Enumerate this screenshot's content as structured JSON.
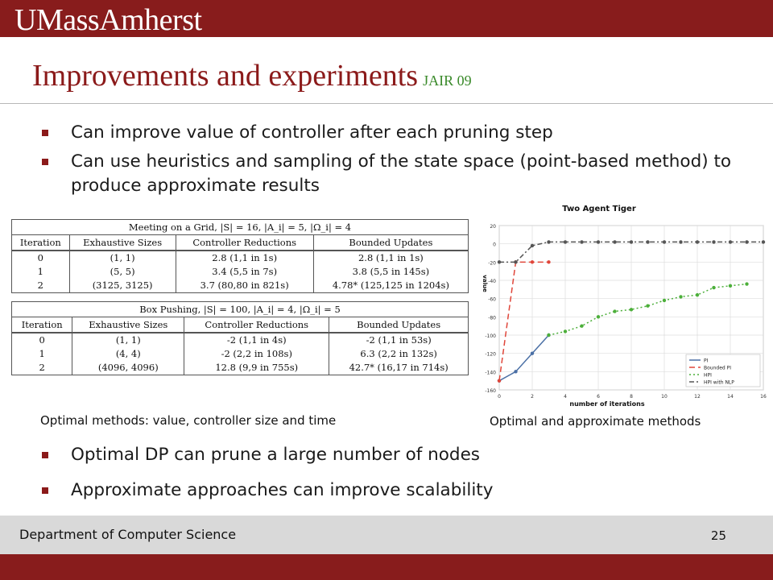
{
  "header": {
    "logo_text": "UMassAmherst"
  },
  "slide": {
    "title": "Improvements and experiments",
    "title_tag": "JAIR 09",
    "bullets": [
      "Can improve value of controller after each pruning step",
      "Can use heuristics and sampling of the state space (point-based method) to produce approximate results"
    ],
    "bullets_bottom": [
      "Optimal DP can prune a large number of nodes",
      "Approximate approaches can improve scalability"
    ],
    "caption_left": "Optimal methods: value, controller size and time",
    "caption_right": "Optimal and approximate methods"
  },
  "table1": {
    "caption": "Meeting on a Grid, |S| = 16, |A_i| = 5, |Ω_i| = 4",
    "headers": [
      "Iteration",
      "Exhaustive Sizes",
      "Controller Reductions",
      "Bounded Updates"
    ],
    "rows": [
      [
        "0",
        "(1, 1)",
        "2.8 (1,1 in 1s)",
        "2.8 (1,1 in 1s)"
      ],
      [
        "1",
        "(5, 5)",
        "3.4 (5,5 in 7s)",
        "3.8 (5,5 in 145s)"
      ],
      [
        "2",
        "(3125, 3125)",
        "3.7 (80,80 in 821s)",
        "4.78* (125,125 in 1204s)"
      ]
    ]
  },
  "table2": {
    "caption": "Box Pushing, |S| = 100, |A_i| = 4, |Ω_i| = 5",
    "headers": [
      "Iteration",
      "Exhaustive Sizes",
      "Controller Reductions",
      "Bounded Updates"
    ],
    "rows": [
      [
        "0",
        "(1, 1)",
        "-2 (1,1 in 4s)",
        "-2 (1,1 in 53s)"
      ],
      [
        "1",
        "(4, 4)",
        "-2 (2,2 in 108s)",
        "6.3 (2,2 in 132s)"
      ],
      [
        "2",
        "(4096, 4096)",
        "12.8 (9,9 in 755s)",
        "42.7* (16,17 in 714s)"
      ]
    ]
  },
  "chart_data": {
    "type": "line",
    "title": "Two Agent Tiger",
    "xlabel": "number of iterations",
    "ylabel": "value",
    "xlim": [
      0,
      16
    ],
    "ylim": [
      -160,
      20
    ],
    "xticks": [
      0,
      2,
      4,
      6,
      8,
      10,
      12,
      14,
      16
    ],
    "yticks": [
      20,
      0,
      -20,
      -40,
      -60,
      -80,
      -100,
      -120,
      -140,
      -160
    ],
    "grid": true,
    "legend": "bottom-right",
    "series": [
      {
        "name": "PI",
        "color": "#4a6fa5",
        "style": "solid",
        "x": [
          0,
          1,
          2,
          3
        ],
        "y": [
          -150,
          -140,
          -120,
          -100
        ]
      },
      {
        "name": "Bounded PI",
        "color": "#e0463a",
        "style": "dashed",
        "x": [
          0,
          1,
          2,
          3
        ],
        "y": [
          -150,
          -20,
          -20,
          -20
        ]
      },
      {
        "name": "HPI",
        "color": "#4caf3a",
        "style": "dotted",
        "x": [
          3,
          4,
          5,
          6,
          7,
          8,
          9,
          10,
          11,
          12,
          13,
          14,
          15
        ],
        "y": [
          -100,
          -96,
          -90,
          -80,
          -74,
          -72,
          -68,
          -62,
          -58,
          -56,
          -48,
          -46,
          -44
        ]
      },
      {
        "name": "HPI with NLP",
        "color": "#555555",
        "style": "dashdot",
        "x": [
          0,
          1,
          2,
          3,
          4,
          5,
          6,
          7,
          8,
          9,
          10,
          11,
          12,
          13,
          14,
          15,
          16
        ],
        "y": [
          -20,
          -20,
          -2,
          2,
          2,
          2,
          2,
          2,
          2,
          2,
          2,
          2,
          2,
          2,
          2,
          2,
          2
        ]
      }
    ]
  },
  "footer": {
    "department": "Department of Computer Science",
    "page_number": "25"
  },
  "colors": {
    "maroon": "#881c1c",
    "footer_gray": "#d9d9d9",
    "tag_green": "#3a8a2a"
  }
}
